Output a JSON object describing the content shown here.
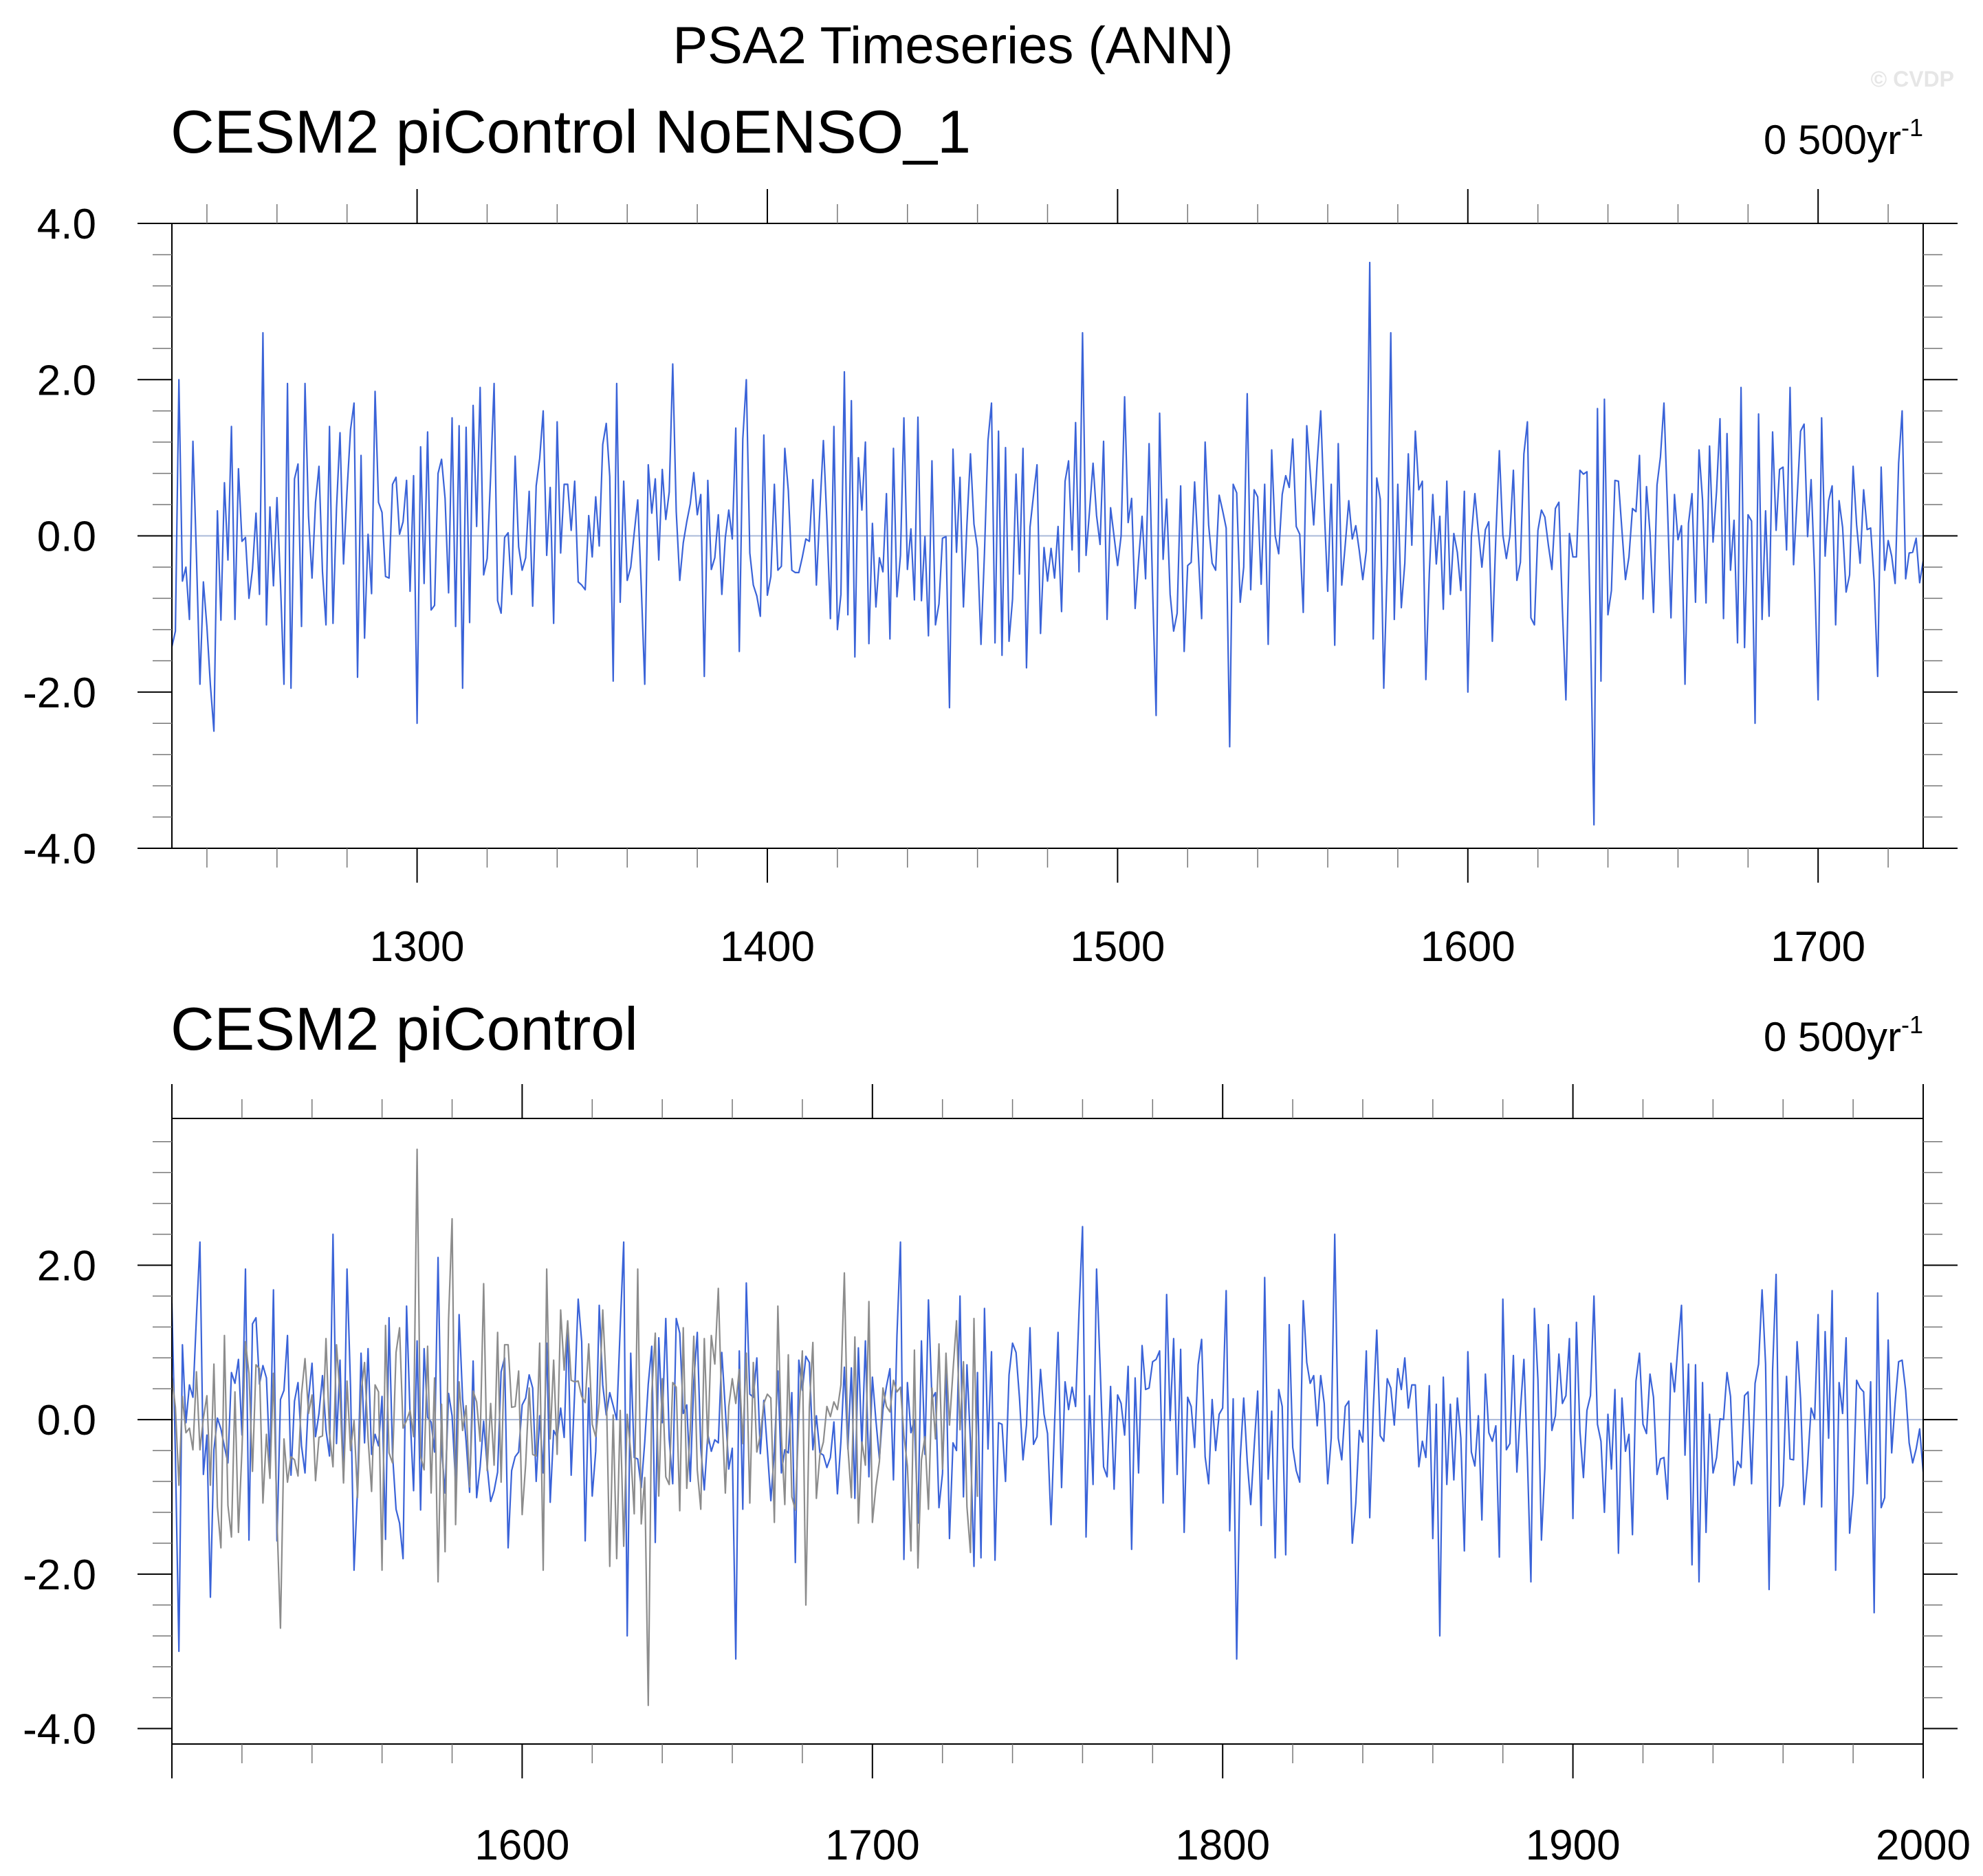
{
  "main_title": "PSA2 Timeseries (ANN)",
  "watermark": "© CVDP",
  "colors": {
    "series": "#3a63d8",
    "overlay": "#8c8c8c",
    "zero_line": "#a9b8d8",
    "axis": "#000000"
  },
  "chart_data": [
    {
      "type": "line",
      "title": "CESM2 piControl NoENSO_1",
      "trend_label": "0 500yr",
      "trend_exponent": "-1",
      "xlim": [
        1230,
        1730
      ],
      "ylim": [
        -4.0,
        4.0
      ],
      "x_ticks": [
        1300,
        1400,
        1500,
        1600,
        1700
      ],
      "y_ticks": [
        4.0,
        2.0,
        0.0,
        -2.0,
        -4.0
      ],
      "y_tick_labels": [
        "4.0",
        "2.0",
        "0.0",
        "-2.0",
        "-4.0"
      ],
      "zero_line": true,
      "series": [
        {
          "x_start": 1230,
          "x_end": 1730,
          "color": "#3a63d8",
          "values": [],
          "anchors": [
            [
              1232,
              2.0
            ],
            [
              1238,
              -1.9
            ],
            [
              1242,
              -2.5
            ],
            [
              1256,
              2.6
            ],
            [
              1262,
              -1.9
            ],
            [
              1282,
              1.7
            ],
            [
              1300,
              -2.4
            ],
            [
              1318,
              1.9
            ],
            [
              1336,
              1.6
            ],
            [
              1365,
              -1.9
            ],
            [
              1373,
              2.2
            ],
            [
              1382,
              -1.8
            ],
            [
              1394,
              2.0
            ],
            [
              1422,
              2.1
            ],
            [
              1452,
              -2.2
            ],
            [
              1464,
              1.7
            ],
            [
              1490,
              2.6
            ],
            [
              1511,
              -2.3
            ],
            [
              1532,
              -2.7
            ],
            [
              1558,
              1.6
            ],
            [
              1572,
              3.5
            ],
            [
              1578,
              2.6
            ],
            [
              1600,
              -2.0
            ],
            [
              1628,
              -2.1
            ],
            [
              1636,
              -3.7
            ],
            [
              1656,
              1.7
            ],
            [
              1678,
              1.9
            ],
            [
              1682,
              -2.4
            ],
            [
              1692,
              1.9
            ],
            [
              1700,
              -2.1
            ],
            [
              1717,
              -1.8
            ],
            [
              1724,
              1.6
            ]
          ]
        }
      ]
    },
    {
      "type": "line",
      "title": "CESM2 piControl",
      "trend_label": "0 500yr",
      "trend_exponent": "-1",
      "xlim": [
        1500,
        2000
      ],
      "ylim": [
        -4.2,
        3.9
      ],
      "x_ticks": [
        1600,
        1700,
        1800,
        1900,
        2000
      ],
      "y_ticks": [
        2.0,
        0.0,
        -2.0,
        -4.0
      ],
      "y_tick_labels": [
        "2.0",
        "0.0",
        "-2.0",
        "-4.0"
      ],
      "zero_line": true,
      "series": [
        {
          "x_start": 1500,
          "x_end": 2000,
          "color": "#3a63d8",
          "values": [],
          "anchors": [
            [
              1502,
              -3.0
            ],
            [
              1508,
              2.3
            ],
            [
              1511,
              -2.3
            ],
            [
              1546,
              2.4
            ],
            [
              1566,
              -1.8
            ],
            [
              1576,
              2.1
            ],
            [
              1629,
              2.3
            ],
            [
              1630,
              -2.8
            ],
            [
              1661,
              -3.1
            ],
            [
              1708,
              2.3
            ],
            [
              1760,
              2.5
            ],
            [
              1804,
              -3.1
            ],
            [
              1832,
              2.4
            ],
            [
              1862,
              -2.8
            ],
            [
              1888,
              -2.1
            ],
            [
              1906,
              1.6
            ],
            [
              1936,
              -2.1
            ],
            [
              1956,
              -2.2
            ],
            [
              1986,
              -2.5
            ]
          ]
        },
        {
          "x_start": 1500,
          "x_end": 1730,
          "color": "#8c8c8c",
          "values": [],
          "anchors": [
            [
              1531,
              -2.7
            ],
            [
              1570,
              3.5
            ],
            [
              1576,
              -2.1
            ],
            [
              1580,
              2.6
            ],
            [
              1625,
              -1.9
            ],
            [
              1636,
              -3.7
            ],
            [
              1656,
              1.7
            ],
            [
              1681,
              -2.4
            ],
            [
              1692,
              1.9
            ]
          ]
        }
      ]
    }
  ]
}
